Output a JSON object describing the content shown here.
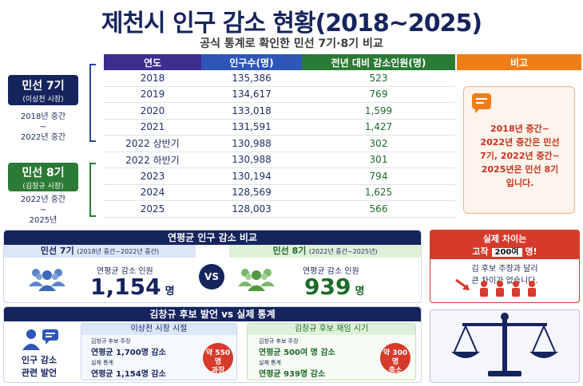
{
  "header": {
    "title": "제천시 인구 감소 현황(2018~2025)",
    "subtitle": "공식 통계로 확인한 민선 7기·8기 비교"
  },
  "table": {
    "headers": [
      "연도",
      "인구수(명)",
      "전년 대비 감소인원(명)",
      "비고"
    ],
    "rows": [
      [
        "2018",
        "135,386",
        "523"
      ],
      [
        "2019",
        "134,617",
        "769"
      ],
      [
        "2020",
        "133,018",
        "1,599"
      ],
      [
        "2021",
        "131,591",
        "1,427"
      ],
      [
        "2022 상반기",
        "130,988",
        "302"
      ],
      [
        "2022 하반기",
        "130,988",
        "301"
      ],
      [
        "2023",
        "130,194",
        "794"
      ],
      [
        "2024",
        "128,569",
        "1,625"
      ],
      [
        "2025",
        "128,003",
        "566"
      ]
    ],
    "note": "2018년 중간~ 2022년 중간은 민선 7기, 2022년 중간~ 2025년은 민선 8기입니다."
  },
  "eras": {
    "e7": {
      "name": "민선 7기",
      "mayor": "(이상천 시장)",
      "period_a": "2018년 중간",
      "tilde": "~",
      "period_b": "2022년 중간"
    },
    "e8": {
      "name": "민선 8기",
      "mayor": "(김창규 시장)",
      "period_a": "2022년 중간",
      "tilde": "~",
      "period_b": "2025년"
    }
  },
  "compare": {
    "title": "연평균 인구 감소 비교",
    "left_label": "민선 7기",
    "left_period": "(2018년 중간~2022년 중간)",
    "left_caption": "연평균 감소 인원",
    "left_value": "1,154",
    "left_unit": "명",
    "vs": "VS",
    "right_label": "민선 8기",
    "right_period": "(2022년 중간~2025년)",
    "right_caption": "연평균 감소 인원",
    "right_value": "939",
    "right_unit": "명"
  },
  "diff": {
    "head_a": "실제 차이는",
    "head_b_pre": "고작",
    "head_b_box": "200여",
    "head_b_post": "명!",
    "body_a": "김 후보 주장과 달리",
    "body_b": "큰 차이가 없습니다."
  },
  "speech": {
    "title": "김창규 후보 발언 vs 실제 통계",
    "side_a": "인구 감소",
    "side_b": "관련 발언",
    "left_head": "이상천 시장 시절",
    "left_claim_label": "김창규 후보 주장",
    "left_claim": "연평균 1,700명 감소",
    "left_real_label": "실제 통계",
    "left_real": "연평균 1,154명 감소",
    "left_pill_a": "약 550명",
    "left_pill_b": "과장",
    "right_head": "김창규 후보 재임 시기",
    "right_claim_label": "김창규 후보 주장",
    "right_claim": "연평균 500여 명 감소",
    "right_real_label": "실제 통계",
    "right_real": "연평균 939명 감소",
    "right_pill_a": "약 300명",
    "right_pill_b": "축소"
  },
  "colors": {
    "navy": "#16245e",
    "purple": "#3d2d8f",
    "blue": "#2d56b8",
    "green": "#2b7a35",
    "orange": "#ef7d18",
    "red": "#d63a2a"
  }
}
